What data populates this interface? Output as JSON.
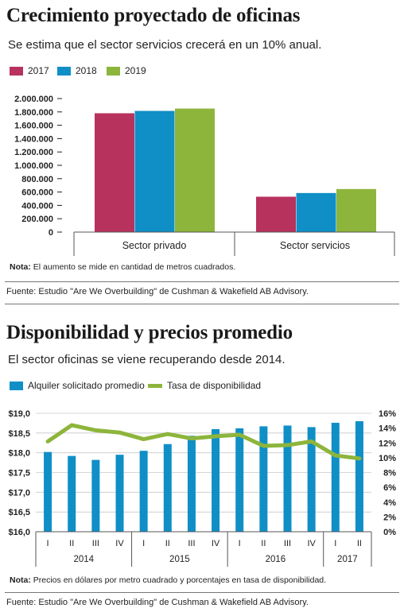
{
  "section1": {
    "title": "Crecimiento proyectado de oficinas",
    "subtitle": "Se estima que el sector servicios crecerá en un 10% anual.",
    "note_label": "Nota:",
    "note_text": " El aumento se mide en cantidad de metros cuadrados.",
    "source": "Fuente: Estudio \"Are We Overbuilding\" de Cushman & Wakefield AB Advisory."
  },
  "section2": {
    "title": "Disponibilidad y precios promedio",
    "subtitle": "El sector oficinas se viene recuperando desde 2014.",
    "note_label": "Nota:",
    "note_text": " Precios en dólares por metro cuadrado y porcentajes en tasa de disponibilidad.",
    "source": "Fuente: Estudio \"Are We Overbuilding\" de Cushman & Wakefield AB Advisory."
  },
  "colors": {
    "y2017": "#b8325e",
    "y2018": "#0f8fc6",
    "y2019": "#8db53b",
    "bar2": "#0f8fc6",
    "line2": "#8db53b"
  },
  "chart_data": [
    {
      "type": "bar",
      "categories": [
        "Sector privado",
        "Sector servicios"
      ],
      "series": [
        {
          "name": "2017",
          "values": [
            1780000,
            530000
          ]
        },
        {
          "name": "2018",
          "values": [
            1815000,
            585000
          ]
        },
        {
          "name": "2019",
          "values": [
            1850000,
            645000
          ]
        }
      ],
      "yticks": [
        "2.000.000",
        "1.800.000",
        "1.600.000",
        "1.400.000",
        "1.200.000",
        "1.000.000",
        "800.000",
        "600.000",
        "400.000",
        "200.000",
        "0"
      ],
      "ylim": [
        0,
        2000000
      ],
      "legend_position": "top-left",
      "grid": false
    },
    {
      "type": "bar+line",
      "x": [
        "I",
        "II",
        "III",
        "IV",
        "I",
        "II",
        "III",
        "IV",
        "I",
        "II",
        "III",
        "IV",
        "I",
        "II"
      ],
      "years": [
        "2014",
        "2015",
        "2016",
        "2017"
      ],
      "year_spans": [
        4,
        4,
        4,
        2
      ],
      "series": [
        {
          "name": "Alquiler solicitado promedio",
          "type": "bar",
          "axis": "left",
          "values": [
            18.02,
            17.92,
            17.82,
            17.95,
            18.05,
            18.22,
            18.43,
            18.6,
            18.62,
            18.67,
            18.69,
            18.65,
            18.76,
            18.8
          ]
        },
        {
          "name": "Tasa de disponibilidad",
          "type": "line",
          "axis": "right",
          "values": [
            12.2,
            14.4,
            13.7,
            13.4,
            12.5,
            13.2,
            12.6,
            12.9,
            13.1,
            11.6,
            11.7,
            12.2,
            10.3,
            9.9
          ]
        }
      ],
      "yleft_ticks": [
        "$19,0",
        "$18,5",
        "$18,0",
        "$17,5",
        "$17,0",
        "$16,5",
        "$16,0"
      ],
      "yleft_lim": [
        16,
        19
      ],
      "yright_ticks": [
        "16%",
        "14%",
        "12%",
        "10%",
        "8%",
        "6%",
        "4%",
        "2%",
        "0%"
      ],
      "yright_lim": [
        0,
        16
      ],
      "legend_position": "top-left",
      "grid": true
    }
  ]
}
